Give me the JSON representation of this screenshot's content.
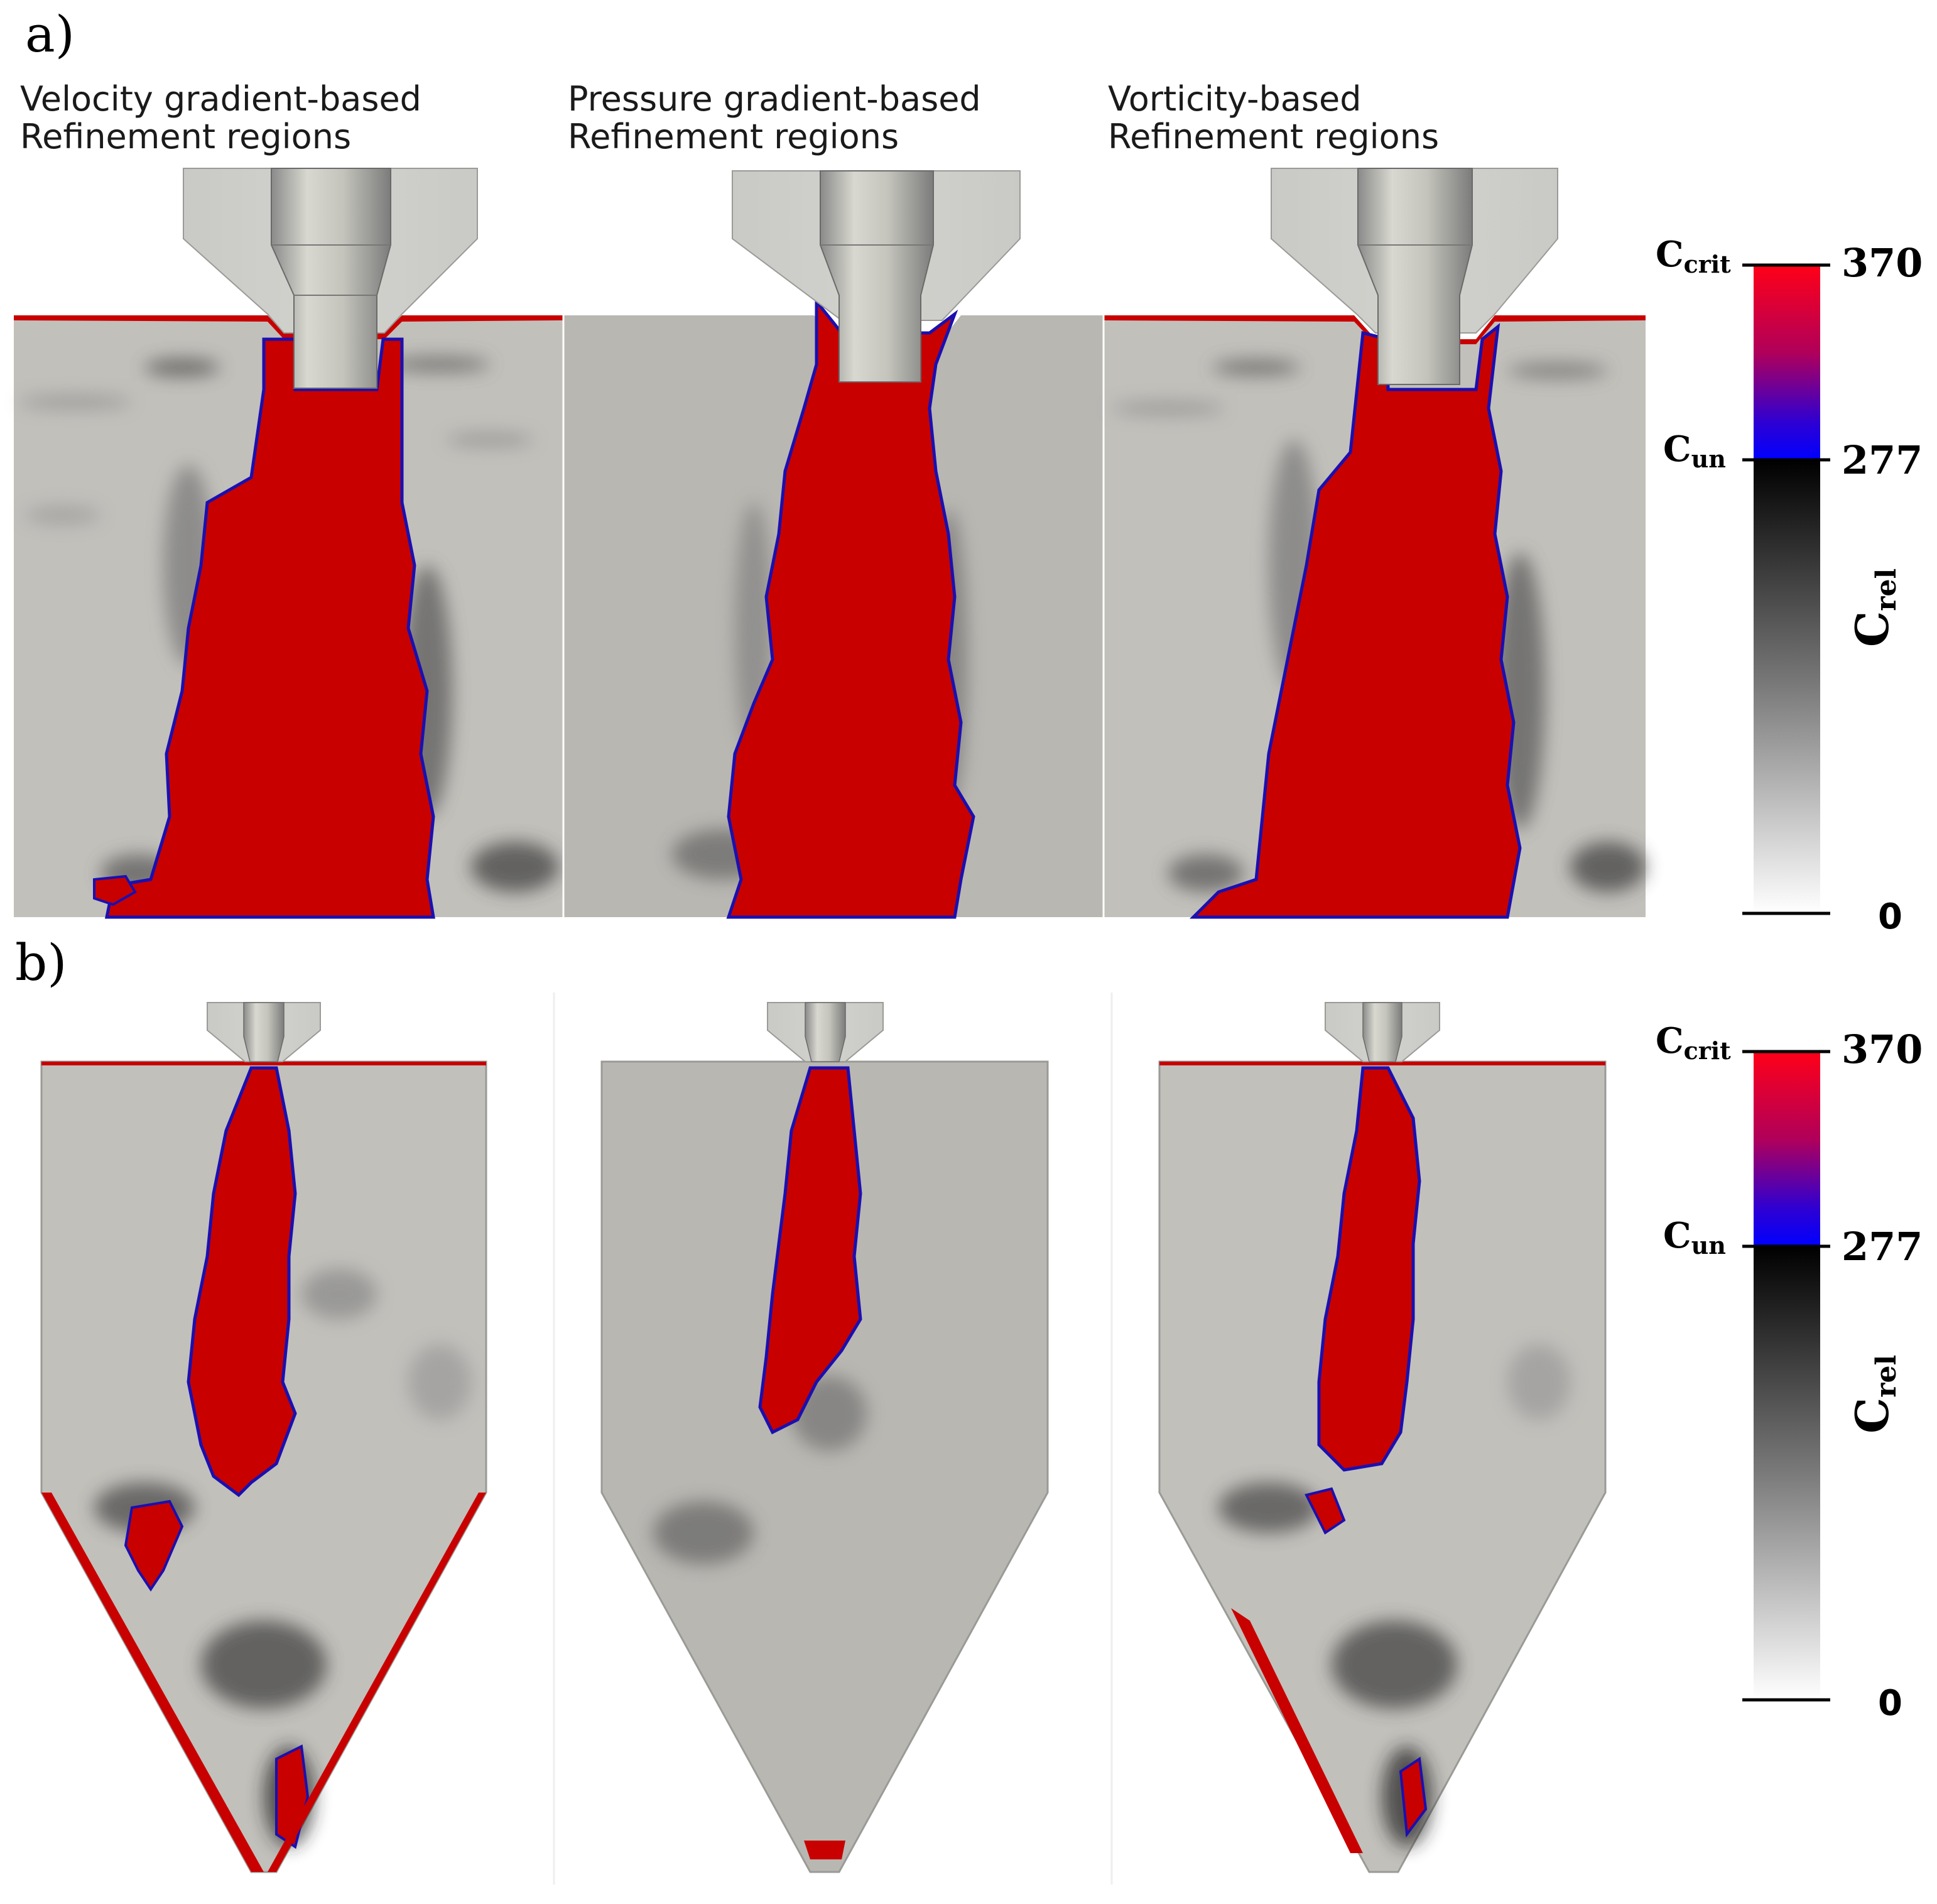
{
  "panels": {
    "a": {
      "letter": "a)"
    },
    "b": {
      "letter": "b)"
    }
  },
  "columns": [
    {
      "line1": "Velocity gradient-based",
      "line2": "Refinement regions"
    },
    {
      "line1": "Pressure gradient-based",
      "line2": "Refinement regions"
    },
    {
      "line1": "Vorticity-based",
      "line2": "Refinement regions"
    }
  ],
  "colorbar": {
    "max_label": "370",
    "mid_label": "277",
    "min_label": "0",
    "crit_symbol": "C",
    "crit_subscript": "crit",
    "un_symbol": "C",
    "un_subscript": "un",
    "title_symbol": "C",
    "title_subscript": "rel"
  },
  "colors": {
    "fluid_background": "#b9b7b2",
    "critical_red": "#c80000",
    "threshold_blue": "#1010d0",
    "nozzle_grey": "#bdbdbd",
    "colorbar_top": "#ff0018",
    "colorbar_mid": "#0000ff",
    "colorbar_dark": "#000000",
    "colorbar_light": "#ffffff"
  }
}
